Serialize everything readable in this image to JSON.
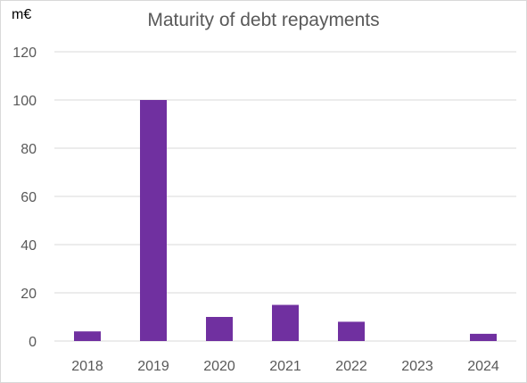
{
  "chart_data": {
    "type": "bar",
    "title": "Maturity of debt repayments",
    "unit_label": "m€",
    "xlabel": "",
    "ylabel": "",
    "categories": [
      "2018",
      "2019",
      "2020",
      "2021",
      "2022",
      "2023",
      "2024"
    ],
    "values": [
      4,
      100,
      10,
      15,
      8,
      0,
      3
    ],
    "ylim": [
      0,
      120
    ],
    "yticks": [
      "0",
      "20",
      "40",
      "60",
      "80",
      "100",
      "120"
    ],
    "grid": true,
    "legend": "none",
    "bar_color": "#7030a0",
    "grid_color": "#d9d9d9",
    "text_color": "#595959"
  }
}
